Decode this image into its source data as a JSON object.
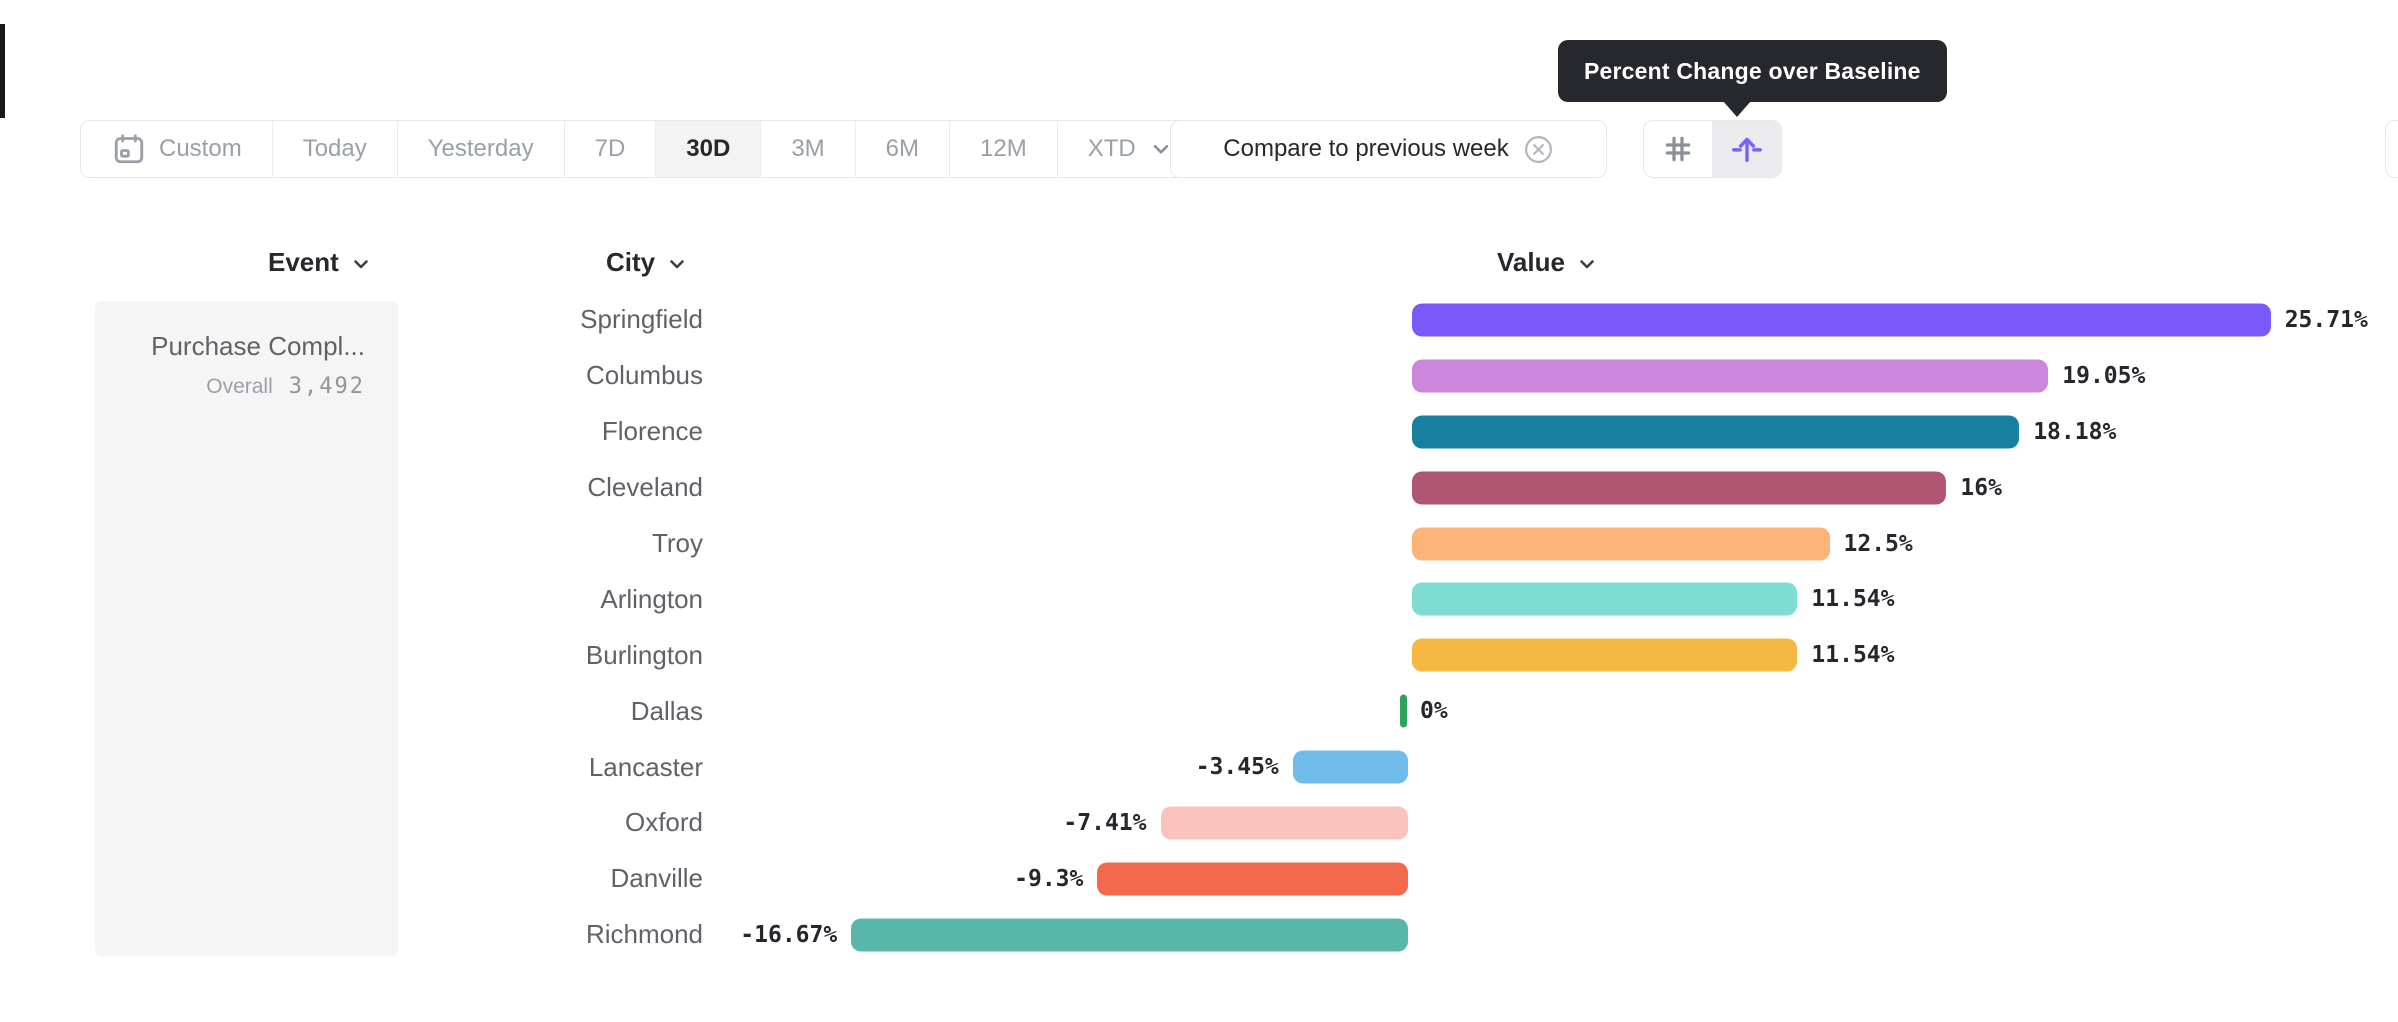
{
  "tooltip": {
    "text": "Percent Change over Baseline"
  },
  "toolbar": {
    "date_ranges": [
      {
        "label": "Custom",
        "icon": "calendar",
        "selected": false
      },
      {
        "label": "Today",
        "selected": false
      },
      {
        "label": "Yesterday",
        "selected": false
      },
      {
        "label": "7D",
        "selected": false
      },
      {
        "label": "30D",
        "selected": true
      },
      {
        "label": "3M",
        "selected": false
      },
      {
        "label": "6M",
        "selected": false
      },
      {
        "label": "12M",
        "selected": false
      },
      {
        "label": "XTD",
        "selected": false,
        "has_chevron": true
      }
    ],
    "compare_chip": {
      "label": "Compare to previous week",
      "dismiss_icon": "circle-x-icon"
    },
    "view_toggle": [
      {
        "name": "grid-view",
        "icon": "hash-icon",
        "selected": false
      },
      {
        "name": "baseline-view",
        "icon": "baseline-arrow-icon",
        "selected": true
      }
    ]
  },
  "columns": {
    "event": "Event",
    "city": "City",
    "value": "Value"
  },
  "event_panel": {
    "title": "Purchase Compl...",
    "overall_label": "Overall",
    "overall_value": "3,492"
  },
  "chart_data": {
    "type": "bar",
    "orientation": "horizontal",
    "title": "Percent Change over Baseline",
    "value_axis_label": "Value",
    "category_axis_label": "City",
    "unit": "percent",
    "categories": [
      "Springfield",
      "Columbus",
      "Florence",
      "Cleveland",
      "Troy",
      "Arlington",
      "Burlington",
      "Dallas",
      "Lancaster",
      "Oxford",
      "Danville",
      "Richmond"
    ],
    "values": [
      25.71,
      19.05,
      18.18,
      16,
      12.5,
      11.54,
      11.54,
      0,
      -3.45,
      -7.41,
      -9.3,
      -16.67
    ],
    "labels": [
      "25.71%",
      "19.05%",
      "18.18%",
      "16%",
      "12.5%",
      "11.54%",
      "11.54%",
      "0%",
      "-3.45%",
      "-7.41%",
      "-9.3%",
      "-16.67%"
    ],
    "colors": [
      "#7A59FA",
      "#CC86DC",
      "#177FA0",
      "#B05672",
      "#FBB377",
      "#7EDCD2",
      "#F5B843",
      "#2FA35C",
      "#6FBCEA",
      "#F9C3BB",
      "#F3694C",
      "#58B7A8"
    ],
    "xlim": [
      -20,
      29
    ],
    "grid": false,
    "legend": false
  },
  "colors": {
    "accent_purple": "#7B61F8",
    "tooltip_bg": "#26282D",
    "selected_bg": "#F3F3F4",
    "border": "#E7E7E9",
    "text_dark": "#26282C",
    "text_gray": "#9AA0A6",
    "city_text": "#5F6368"
  }
}
